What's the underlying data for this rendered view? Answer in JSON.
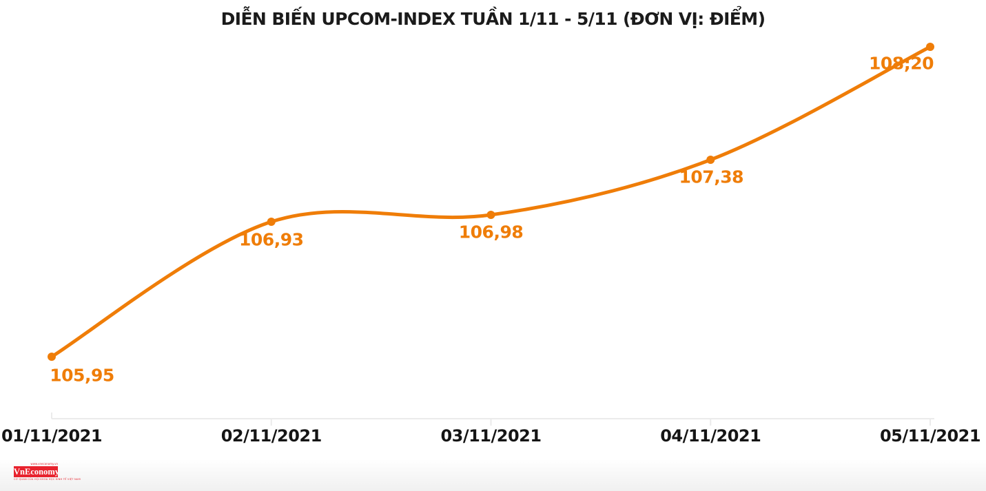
{
  "title": "DIỄN BIẾN UPCOM-INDEX TUẦN 1/11 - 5/11 (ĐƠN VỊ: ĐIỂM)",
  "chart_data": {
    "type": "line",
    "title": "DIỄN BIẾN UPCOM-INDEX TUẦN 1/11 - 5/11 (ĐƠN VỊ: ĐIỂM)",
    "categories": [
      "01/11/2021",
      "02/11/2021",
      "03/11/2021",
      "04/11/2021",
      "05/11/2021"
    ],
    "values": [
      105.95,
      106.93,
      106.98,
      107.38,
      108.2
    ],
    "point_labels": [
      "105,95",
      "106,93",
      "106,98",
      "107,38",
      "108;20"
    ],
    "xlabel": "",
    "ylabel": "",
    "ylim": [
      105.5,
      108.5
    ],
    "y_axis_visible": false,
    "grid": false,
    "legend": false,
    "marker": "circle",
    "line_smooth": true
  },
  "colors": {
    "line": "#EF7D08",
    "marker": "#EF7D08",
    "point_label": "#EF7D08",
    "title_text": "#1B1B1B",
    "axis_text": "#151515",
    "axis_line": "#EBEBEB",
    "logo_red": "#E8222D",
    "logo_text": "#FFFFFF"
  },
  "logo": {
    "name": "VnEconomy",
    "tagline_top": "www.vneconomy.vn",
    "tagline_bottom": "CƠ QUAN CỦA HỘI KHOA HỌC KINH TẾ VIỆT NAM"
  }
}
